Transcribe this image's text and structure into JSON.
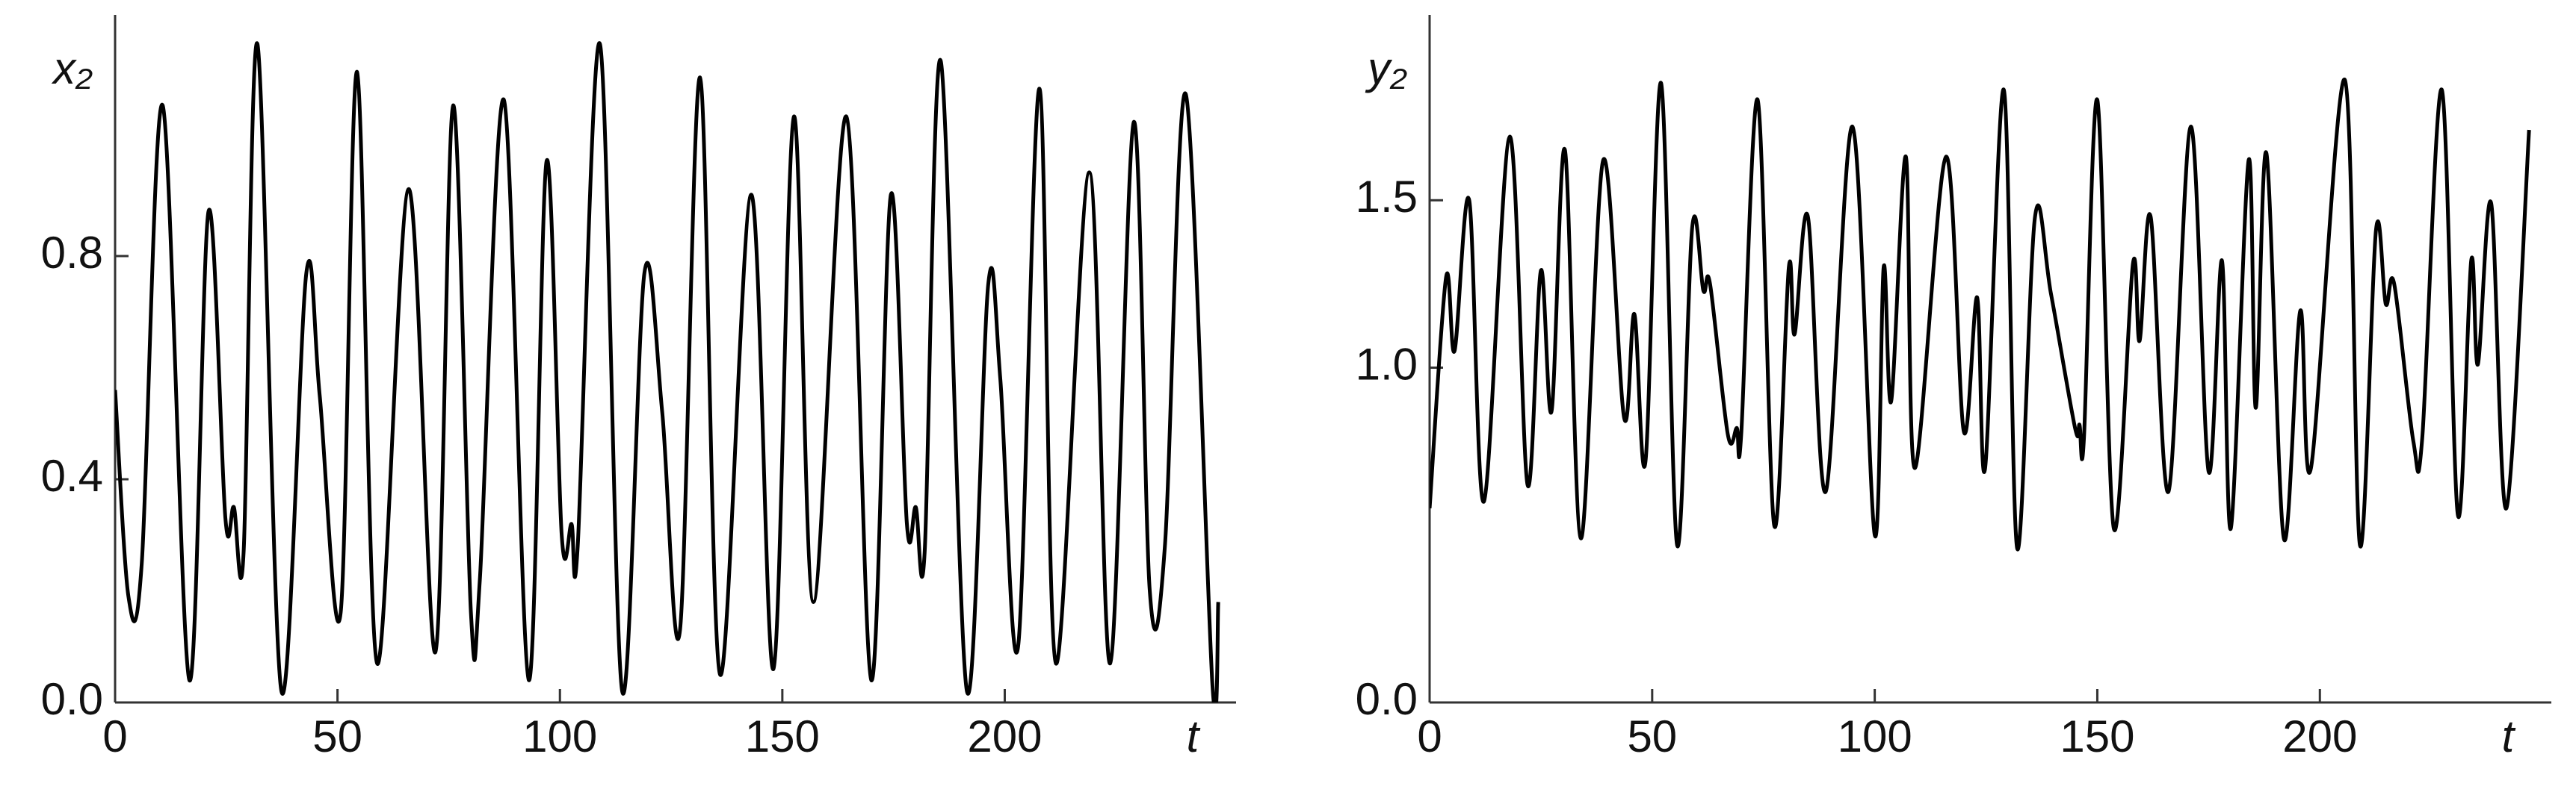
{
  "chart_data": [
    {
      "type": "line",
      "y_label": "x₂",
      "x_label": "t",
      "x": [
        0,
        3,
        6,
        10.7,
        16.7,
        21,
        24.8,
        26.7,
        28.9,
        32,
        37.4,
        43,
        46,
        50.7,
        54.4,
        58.9,
        66,
        72,
        76,
        80,
        82,
        87.4,
        93,
        97,
        100.4,
        102.6,
        104,
        109,
        114,
        119,
        123,
        127,
        131.5,
        136,
        143,
        148,
        152.6,
        157,
        164.4,
        170,
        174.4,
        178,
        180,
        182,
        185.6,
        191.5,
        196.3,
        199,
        203,
        207.8,
        211.5,
        219,
        223.7,
        229,
        232.6,
        236,
        240.7,
        246.7,
        248
      ],
      "series": [
        {
          "color": "#000000",
          "values": [
            0.56,
            0.19,
            0.25,
            1.07,
            0.04,
            0.88,
            0.33,
            0.35,
            0.27,
            1.18,
            0.02,
            0.77,
            0.55,
            0.16,
            1.13,
            0.07,
            0.92,
            0.09,
            1.07,
            0.16,
            0.22,
            1.08,
            0.04,
            0.97,
            0.3,
            0.32,
            0.28,
            1.18,
            0.02,
            0.77,
            0.52,
            0.13,
            1.12,
            0.05,
            0.91,
            0.06,
            1.05,
            0.18,
            1.05,
            0.04,
            0.91,
            0.32,
            0.35,
            0.27,
            1.15,
            0.02,
            0.75,
            0.58,
            0.1,
            1.1,
            0.07,
            0.95,
            0.07,
            1.04,
            0.2,
            0.28,
            1.09,
            0.03,
            0.18
          ]
        }
      ],
      "xlim": [
        0,
        252
      ],
      "xticks": [
        0,
        50,
        100,
        150,
        200
      ],
      "ylim": [
        0,
        1.2
      ],
      "yticks": [
        {
          "value": 0,
          "label": "0.0"
        },
        0.4,
        0.8
      ]
    },
    {
      "type": "line",
      "y_label": "y₂",
      "x_label": "t",
      "x": [
        0,
        3.7,
        5.6,
        8.9,
        12.2,
        18,
        22,
        25,
        27.4,
        30.4,
        34,
        39,
        43.7,
        46,
        48.5,
        52,
        55.6,
        59,
        61.5,
        63,
        67,
        69,
        70,
        73.7,
        77.4,
        80.7,
        82,
        85,
        89,
        95,
        100,
        102,
        103.7,
        107,
        109,
        116,
        120,
        123,
        124.8,
        129,
        132,
        136,
        139.6,
        145,
        146,
        147,
        150,
        153.7,
        158,
        159.5,
        162,
        166,
        171,
        175,
        178,
        180,
        184,
        185.6,
        188,
        191.9,
        195.6,
        198,
        205.6,
        209,
        212.6,
        214.8,
        216.7,
        221,
        223,
        227.4,
        231,
        234,
        235.5,
        238.5,
        241.9,
        247
      ],
      "series": [
        {
          "color": "#000000",
          "values": [
            0.58,
            1.27,
            1.05,
            1.5,
            0.6,
            1.69,
            0.65,
            1.29,
            0.87,
            1.65,
            0.49,
            1.62,
            0.85,
            1.16,
            0.72,
            1.85,
            0.47,
            1.42,
            1.23,
            1.25,
            0.8,
            0.82,
            0.8,
            1.8,
            0.53,
            1.3,
            1.1,
            1.45,
            0.63,
            1.72,
            0.5,
            1.3,
            0.9,
            1.63,
            0.7,
            1.63,
            0.81,
            1.21,
            0.7,
            1.83,
            0.46,
            1.45,
            1.22,
            0.82,
            0.83,
            0.79,
            1.8,
            0.52,
            1.31,
            1.08,
            1.45,
            0.63,
            1.72,
            0.69,
            1.32,
            0.52,
            1.62,
            0.88,
            1.64,
            0.49,
            1.17,
            0.7,
            1.86,
            0.47,
            1.41,
            1.19,
            1.25,
            0.78,
            0.79,
            1.83,
            0.56,
            1.32,
            1.01,
            1.49,
            0.58,
            1.71
          ]
        }
      ],
      "xlim": [
        0,
        252
      ],
      "xticks": [
        0,
        50,
        100,
        150,
        200
      ],
      "ylim": [
        0,
        2
      ],
      "yticks": [
        {
          "value": 0,
          "label": "0.0"
        },
        {
          "value": 1,
          "label": "1.0"
        },
        1.5
      ]
    }
  ]
}
